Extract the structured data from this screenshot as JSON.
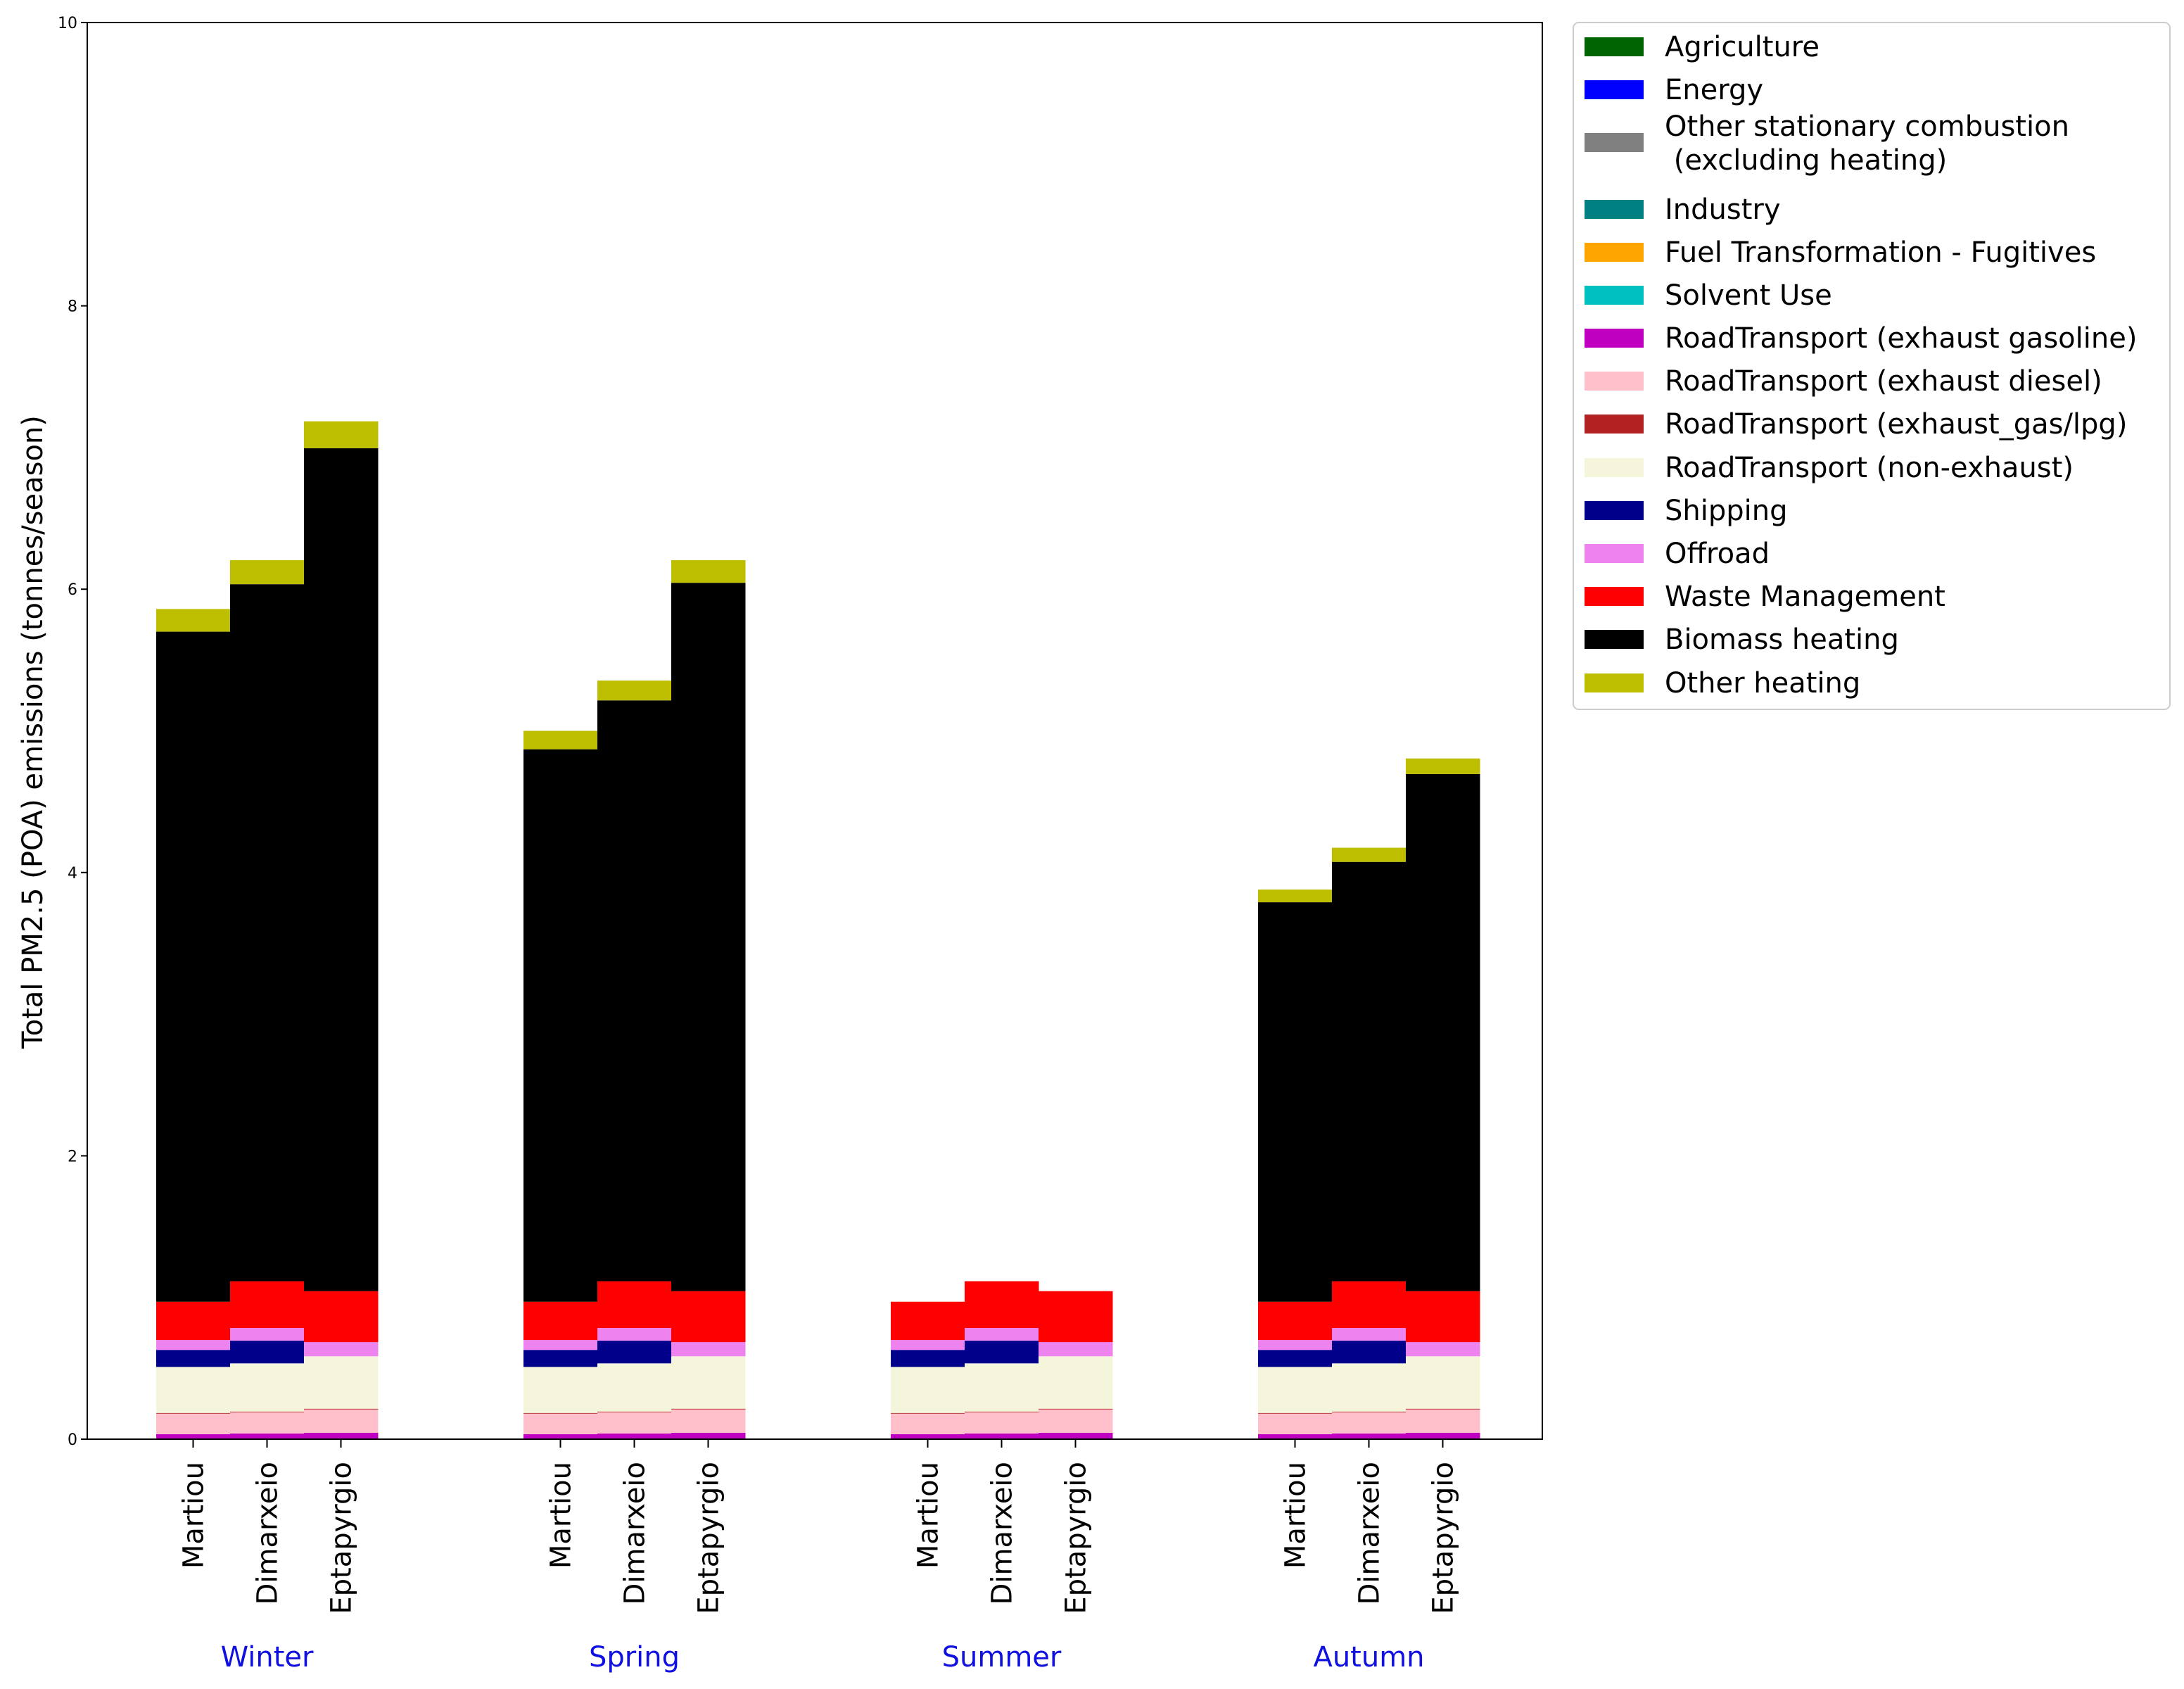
{
  "chart_data": {
    "type": "bar",
    "stacked": true,
    "title": "",
    "xlabel": "",
    "ylabel": "Total PM2.5 (POA) emissions (tonnes/season)",
    "ylim": [
      0,
      10
    ],
    "yticks": [
      "0",
      "2",
      "4",
      "6",
      "8",
      "10"
    ],
    "season_color": "#1010e0",
    "groups": [
      {
        "season": "Winter",
        "sites": [
          "Martiou",
          "Dimarxeio",
          "Eptapyrgio"
        ]
      },
      {
        "season": "Spring",
        "sites": [
          "Martiou",
          "Dimarxeio",
          "Eptapyrgio"
        ]
      },
      {
        "season": "Summer",
        "sites": [
          "Martiou",
          "Dimarxeio",
          "Eptapyrgio"
        ]
      },
      {
        "season": "Autumn",
        "sites": [
          "Martiou",
          "Dimarxeio",
          "Eptapyrgio"
        ]
      }
    ],
    "legend_position": "upper-right outside",
    "series": [
      {
        "name": "Agriculture",
        "color": "#006400",
        "values": [
          0.005,
          0.005,
          0.005,
          0.005,
          0.005,
          0.005,
          0.005,
          0.005,
          0.005,
          0.005,
          0.005,
          0.005
        ]
      },
      {
        "name": "Energy",
        "color": "#0000ff",
        "values": [
          0,
          0,
          0,
          0,
          0,
          0,
          0,
          0,
          0,
          0,
          0,
          0
        ]
      },
      {
        "name": "Other stationary combustion\n (excluding heating)",
        "color": "#808080",
        "values": [
          0,
          0,
          0,
          0,
          0,
          0,
          0,
          0,
          0,
          0,
          0,
          0
        ]
      },
      {
        "name": "Industry",
        "color": "#008080",
        "values": [
          0,
          0,
          0,
          0,
          0,
          0,
          0,
          0,
          0,
          0,
          0,
          0
        ]
      },
      {
        "name": "Fuel Transformation - Fugitives",
        "color": "#ffa500",
        "values": [
          0,
          0,
          0,
          0,
          0,
          0,
          0,
          0,
          0,
          0,
          0,
          0
        ]
      },
      {
        "name": "Solvent Use",
        "color": "#00c0c0",
        "values": [
          0,
          0,
          0,
          0,
          0,
          0,
          0,
          0,
          0,
          0,
          0,
          0
        ]
      },
      {
        "name": "RoadTransport (exhaust gasoline)",
        "color": "#c000c0",
        "values": [
          0.03,
          0.035,
          0.04,
          0.03,
          0.035,
          0.04,
          0.03,
          0.035,
          0.04,
          0.03,
          0.035,
          0.04
        ]
      },
      {
        "name": "RoadTransport (exhaust diesel)",
        "color": "#ffc0cb",
        "values": [
          0.145,
          0.15,
          0.165,
          0.145,
          0.15,
          0.165,
          0.145,
          0.15,
          0.165,
          0.145,
          0.15,
          0.165
        ]
      },
      {
        "name": "RoadTransport (exhaust_gas/lpg)",
        "color": "#b22222",
        "values": [
          0.005,
          0.005,
          0.005,
          0.005,
          0.005,
          0.005,
          0.005,
          0.005,
          0.005,
          0.005,
          0.005,
          0.005
        ]
      },
      {
        "name": "RoadTransport (non-exhaust)",
        "color": "#f5f5dc",
        "values": [
          0.325,
          0.34,
          0.37,
          0.325,
          0.34,
          0.37,
          0.325,
          0.34,
          0.37,
          0.325,
          0.34,
          0.37
        ]
      },
      {
        "name": "Shipping",
        "color": "#00008b",
        "values": [
          0.12,
          0.16,
          0.0,
          0.12,
          0.16,
          0.0,
          0.12,
          0.16,
          0.0,
          0.12,
          0.16,
          0.0
        ]
      },
      {
        "name": "Offroad",
        "color": "#ee82ee",
        "values": [
          0.07,
          0.09,
          0.1,
          0.07,
          0.09,
          0.1,
          0.07,
          0.09,
          0.1,
          0.07,
          0.09,
          0.1
        ]
      },
      {
        "name": "Waste Management",
        "color": "#ff0000",
        "values": [
          0.27,
          0.33,
          0.36,
          0.27,
          0.33,
          0.36,
          0.27,
          0.33,
          0.36,
          0.27,
          0.33,
          0.36
        ]
      },
      {
        "name": "Biomass heating",
        "color": "#000000",
        "values": [
          4.73,
          4.92,
          5.95,
          3.9,
          4.1,
          5.0,
          0.0,
          0.0,
          0.0,
          2.82,
          2.96,
          3.65
        ]
      },
      {
        "name": "Other heating",
        "color": "#bebe00",
        "values": [
          0.16,
          0.17,
          0.19,
          0.13,
          0.14,
          0.16,
          0.0,
          0.0,
          0.0,
          0.09,
          0.1,
          0.11
        ]
      }
    ]
  }
}
